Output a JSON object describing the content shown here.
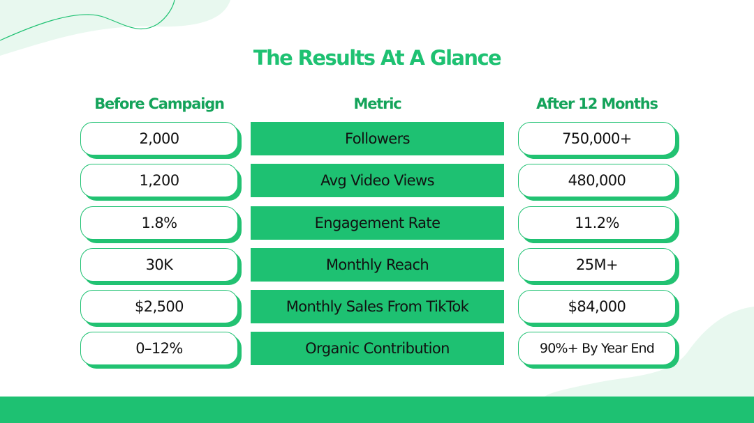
{
  "title": "The Results At A Glance",
  "headers": {
    "before": "Before Campaign",
    "metric": "Metric",
    "after": "After 12 Months"
  },
  "rows": [
    {
      "before": "2,000",
      "metric": "Followers",
      "after": "750,000+"
    },
    {
      "before": "1,200",
      "metric": "Avg Video Views",
      "after": "480,000"
    },
    {
      "before": "1.8%",
      "metric": "Engagement Rate",
      "after": "11.2%"
    },
    {
      "before": "30K",
      "metric": "Monthly Reach",
      "after": "25M+"
    },
    {
      "before": "$2,500",
      "metric": "Monthly Sales From TikTok",
      "after": "$84,000"
    },
    {
      "before": "0–12%",
      "metric": "Organic Contribution",
      "after": "90%+ By Year End"
    }
  ],
  "colors": {
    "accent": "#1ec172",
    "header_text": "#14a35a",
    "decoration": "#e8f8ef",
    "background": "#ffffff"
  }
}
